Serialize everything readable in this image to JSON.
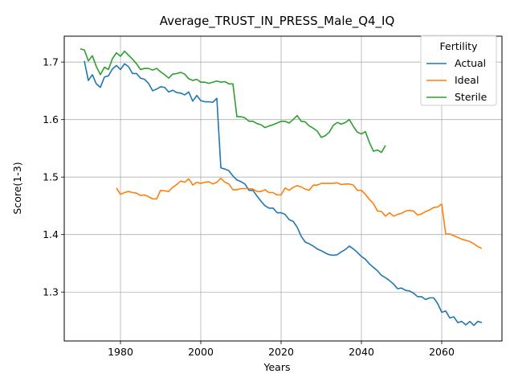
{
  "chart_data": {
    "type": "line",
    "title": "Average_TRUST_IN_PRESS_Male_Q4_IQ",
    "xlabel": "Years",
    "ylabel": "Score(1-3)",
    "xlim": [
      1966,
      2075
    ],
    "ylim": [
      1.215,
      1.745
    ],
    "xticks": [
      1980,
      2000,
      2020,
      2040,
      2060
    ],
    "yticks": [
      1.3,
      1.4,
      1.5,
      1.6,
      1.7
    ],
    "xtick_labels": [
      "1980",
      "2000",
      "2020",
      "2040",
      "2060"
    ],
    "ytick_labels": [
      "1.3",
      "1.4",
      "1.5",
      "1.6",
      "1.7"
    ],
    "grid": true,
    "legend": {
      "title": "Fertility",
      "placement": "top-right"
    },
    "series": [
      {
        "name": "Actual",
        "color": "#1f77b4",
        "x": [
          1971,
          1972,
          1973,
          1974,
          1975,
          1976,
          1977,
          1978,
          1979,
          1980,
          1981,
          1982,
          1983,
          1984,
          1985,
          1986,
          1987,
          1988,
          1989,
          1990,
          1991,
          1992,
          1993,
          1994,
          1995,
          1996,
          1997,
          1998,
          1999,
          2000,
          2001,
          2002,
          2003,
          2004,
          2005,
          2006,
          2007,
          2008,
          2009,
          2010,
          2011,
          2012,
          2013,
          2014,
          2015,
          2016,
          2017,
          2018,
          2019,
          2020,
          2021,
          2022,
          2023,
          2024,
          2025,
          2026,
          2027,
          2028,
          2029,
          2030,
          2031,
          2032,
          2033,
          2034,
          2035,
          2036,
          2037,
          2038,
          2039,
          2040,
          2041,
          2042,
          2043,
          2044,
          2045,
          2046,
          2047,
          2048,
          2049,
          2050,
          2051,
          2052,
          2053,
          2054,
          2055,
          2056,
          2057,
          2058,
          2059,
          2060,
          2061,
          2062,
          2063,
          2064,
          2065,
          2066,
          2067,
          2068,
          2069,
          2070
        ],
        "values": [
          1.702,
          1.668,
          1.678,
          1.662,
          1.656,
          1.674,
          1.676,
          1.688,
          1.694,
          1.687,
          1.697,
          1.692,
          1.68,
          1.68,
          1.672,
          1.67,
          1.663,
          1.65,
          1.653,
          1.657,
          1.656,
          1.648,
          1.651,
          1.647,
          1.646,
          1.643,
          1.648,
          1.632,
          1.642,
          1.633,
          1.631,
          1.631,
          1.63,
          1.637,
          1.516,
          1.514,
          1.511,
          1.502,
          1.495,
          1.492,
          1.488,
          1.477,
          1.477,
          1.467,
          1.458,
          1.45,
          1.446,
          1.446,
          1.438,
          1.438,
          1.435,
          1.426,
          1.423,
          1.413,
          1.397,
          1.387,
          1.384,
          1.38,
          1.375,
          1.372,
          1.368,
          1.365,
          1.364,
          1.365,
          1.37,
          1.374,
          1.38,
          1.375,
          1.369,
          1.362,
          1.357,
          1.349,
          1.343,
          1.337,
          1.329,
          1.325,
          1.32,
          1.314,
          1.306,
          1.307,
          1.303,
          1.302,
          1.298,
          1.292,
          1.292,
          1.287,
          1.29,
          1.29,
          1.28,
          1.265,
          1.267,
          1.255,
          1.257,
          1.247,
          1.249,
          1.243,
          1.249,
          1.242,
          1.249,
          1.247
        ]
      },
      {
        "name": "Ideal",
        "color": "#ff7f0e",
        "x": [
          1979,
          1980,
          1981,
          1982,
          1983,
          1984,
          1985,
          1986,
          1987,
          1988,
          1989,
          1990,
          1991,
          1992,
          1993,
          1994,
          1995,
          1996,
          1997,
          1998,
          1999,
          2000,
          2001,
          2002,
          2003,
          2004,
          2005,
          2006,
          2007,
          2008,
          2009,
          2010,
          2011,
          2012,
          2013,
          2014,
          2015,
          2016,
          2017,
          2018,
          2019,
          2020,
          2021,
          2022,
          2023,
          2024,
          2025,
          2026,
          2027,
          2028,
          2029,
          2030,
          2031,
          2032,
          2033,
          2034,
          2035,
          2036,
          2037,
          2038,
          2039,
          2040,
          2041,
          2042,
          2043,
          2044,
          2045,
          2046,
          2047,
          2048,
          2049,
          2050,
          2051,
          2052,
          2053,
          2054,
          2055,
          2056,
          2057,
          2058,
          2059,
          2060,
          2061,
          2062,
          2063,
          2064,
          2065,
          2066,
          2067,
          2068,
          2069,
          2070
        ],
        "values": [
          1.481,
          1.47,
          1.473,
          1.475,
          1.473,
          1.472,
          1.468,
          1.469,
          1.466,
          1.462,
          1.462,
          1.477,
          1.476,
          1.475,
          1.482,
          1.487,
          1.493,
          1.491,
          1.497,
          1.486,
          1.491,
          1.489,
          1.491,
          1.492,
          1.488,
          1.491,
          1.498,
          1.491,
          1.488,
          1.478,
          1.478,
          1.48,
          1.48,
          1.48,
          1.479,
          1.475,
          1.475,
          1.478,
          1.473,
          1.473,
          1.469,
          1.469,
          1.481,
          1.477,
          1.482,
          1.485,
          1.483,
          1.479,
          1.477,
          1.486,
          1.486,
          1.489,
          1.489,
          1.489,
          1.489,
          1.49,
          1.487,
          1.488,
          1.488,
          1.486,
          1.477,
          1.477,
          1.47,
          1.461,
          1.454,
          1.441,
          1.44,
          1.432,
          1.438,
          1.432,
          1.435,
          1.437,
          1.441,
          1.442,
          1.441,
          1.434,
          1.436,
          1.44,
          1.443,
          1.447,
          1.448,
          1.453,
          1.401,
          1.401,
          1.398,
          1.395,
          1.392,
          1.39,
          1.388,
          1.384,
          1.379,
          1.376
        ]
      },
      {
        "name": "Sterile",
        "color": "#2ca02c",
        "x": [
          1970,
          1971,
          1972,
          1973,
          1974,
          1975,
          1976,
          1977,
          1978,
          1979,
          1980,
          1981,
          1982,
          1983,
          1984,
          1985,
          1986,
          1987,
          1988,
          1989,
          1990,
          1991,
          1992,
          1993,
          1994,
          1995,
          1996,
          1997,
          1998,
          1999,
          2000,
          2001,
          2002,
          2003,
          2004,
          2005,
          2006,
          2007,
          2008,
          2009,
          2010,
          2011,
          2012,
          2013,
          2014,
          2015,
          2016,
          2017,
          2018,
          2019,
          2020,
          2021,
          2022,
          2023,
          2024,
          2025,
          2026,
          2027,
          2028,
          2029,
          2030,
          2031,
          2032,
          2033,
          2034,
          2035,
          2036,
          2037,
          2038,
          2039,
          2040,
          2041,
          2042,
          2043,
          2044,
          2045,
          2046
        ],
        "values": [
          1.723,
          1.721,
          1.702,
          1.711,
          1.692,
          1.678,
          1.691,
          1.687,
          1.706,
          1.716,
          1.71,
          1.719,
          1.712,
          1.705,
          1.697,
          1.687,
          1.689,
          1.689,
          1.686,
          1.689,
          1.683,
          1.678,
          1.672,
          1.679,
          1.68,
          1.682,
          1.679,
          1.671,
          1.668,
          1.67,
          1.665,
          1.665,
          1.663,
          1.665,
          1.667,
          1.665,
          1.666,
          1.662,
          1.662,
          1.605,
          1.605,
          1.603,
          1.597,
          1.597,
          1.593,
          1.591,
          1.586,
          1.589,
          1.591,
          1.594,
          1.597,
          1.597,
          1.594,
          1.6,
          1.607,
          1.597,
          1.596,
          1.589,
          1.585,
          1.58,
          1.569,
          1.572,
          1.578,
          1.59,
          1.595,
          1.592,
          1.595,
          1.6,
          1.588,
          1.578,
          1.575,
          1.579,
          1.56,
          1.545,
          1.547,
          1.543,
          1.555
        ]
      }
    ]
  }
}
